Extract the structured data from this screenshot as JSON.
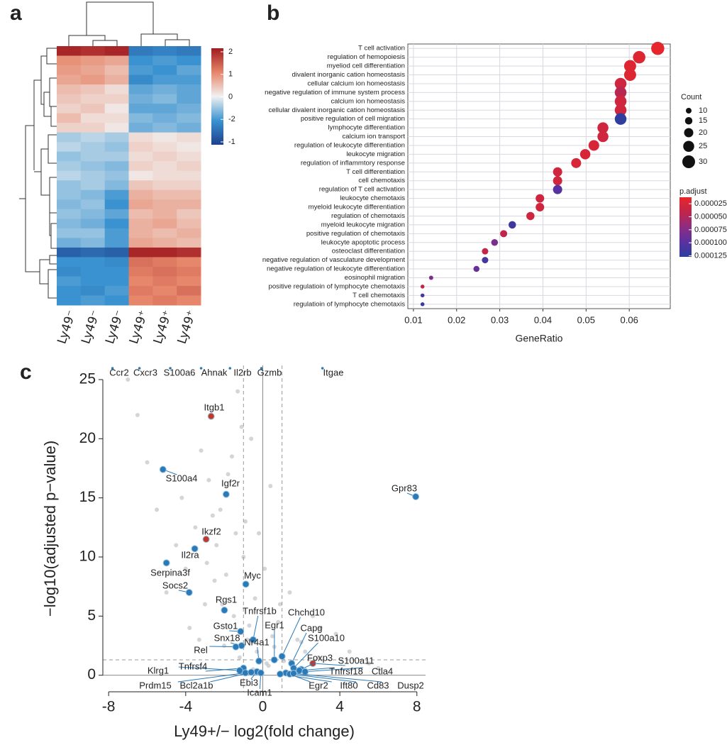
{
  "chart_data": [
    {
      "type": "heatmap",
      "panel": "a",
      "columns": [
        "Ly49⁻",
        "Ly49⁻",
        "Ly49⁻",
        "Ly49⁺",
        "Ly49⁺",
        "Ly49⁺"
      ],
      "rows": [
        [
          1.9,
          1.8,
          1.9,
          -1.3,
          -1.2,
          -1.3
        ],
        [
          0.9,
          0.8,
          0.7,
          -1.0,
          -0.9,
          -1.0
        ],
        [
          0.8,
          0.7,
          0.5,
          -0.9,
          -1.0,
          -0.8
        ],
        [
          0.7,
          0.8,
          0.6,
          -1.1,
          -0.9,
          -0.9
        ],
        [
          0.5,
          0.4,
          0.2,
          -0.8,
          -0.7,
          -0.8
        ],
        [
          0.4,
          0.3,
          0.3,
          -0.7,
          -0.6,
          -0.8
        ],
        [
          0.3,
          0.4,
          0.1,
          -0.8,
          -0.8,
          -0.7
        ],
        [
          0.5,
          0.2,
          0.2,
          -0.6,
          -0.7,
          -0.6
        ],
        [
          0.3,
          0.3,
          0.1,
          -0.7,
          -0.6,
          -0.7
        ],
        [
          -0.4,
          -0.3,
          -0.4,
          0.2,
          0.1,
          0.2
        ],
        [
          -0.3,
          -0.4,
          -0.5,
          0.3,
          0.2,
          0.1
        ],
        [
          -0.5,
          -0.4,
          -0.4,
          0.2,
          0.3,
          0.2
        ],
        [
          -0.4,
          -0.5,
          -0.6,
          0.3,
          0.2,
          0.3
        ],
        [
          -0.3,
          -0.4,
          -0.5,
          0.1,
          0.2,
          0.2
        ],
        [
          -0.5,
          -0.4,
          -0.6,
          0.4,
          0.3,
          0.3
        ],
        [
          -0.5,
          -0.6,
          -0.9,
          0.6,
          0.5,
          0.5
        ],
        [
          -0.6,
          -0.5,
          -1.0,
          0.7,
          0.6,
          0.6
        ],
        [
          -0.5,
          -0.6,
          -0.8,
          0.5,
          0.6,
          0.4
        ],
        [
          -0.6,
          -0.7,
          -1.0,
          0.6,
          0.7,
          0.5
        ],
        [
          -0.5,
          -0.5,
          -0.9,
          0.6,
          0.5,
          0.6
        ],
        [
          -0.7,
          -0.6,
          -0.9,
          0.7,
          0.6,
          0.5
        ],
        [
          -1.6,
          -1.5,
          -1.6,
          1.9,
          1.9,
          1.8
        ],
        [
          -1.0,
          -1.0,
          -1.1,
          1.2,
          1.1,
          1.0
        ],
        [
          -1.1,
          -1.0,
          -1.0,
          1.1,
          1.2,
          1.1
        ],
        [
          -0.9,
          -1.0,
          -1.0,
          1.0,
          1.1,
          1.0
        ],
        [
          -1.0,
          -1.1,
          -0.9,
          1.1,
          1.0,
          1.2
        ],
        [
          -1.0,
          -0.9,
          -1.0,
          1.0,
          1.1,
          1.0
        ]
      ],
      "zlim": [
        -2,
        2
      ],
      "colorscale": [
        "#1d3f8e",
        "#3a93d0",
        "#f1f1f1",
        "#e6866a",
        "#a11b1f"
      ],
      "colorbar_labels": [
        "2",
        "1",
        "0",
        "-2",
        "-1"
      ]
    },
    {
      "type": "dot",
      "panel": "b",
      "categories": [
        "T cell activation",
        "regulation of hemopoiesis",
        "myeliod cell differentiation",
        "divalent inorganic cation homeostasis",
        "cellular calcium ion homeostasis",
        "negative regulation of immune system process",
        "calcium ion homeostasis",
        "cellular divalent inorganic cation homeostasis",
        "positive regulation of cell migration",
        "lymphocyte differentiation",
        "calcium ion transport",
        "regulation of leukocyte differentiation",
        "leukocyte migration",
        "regulation of inflammtory response",
        "T cell differentiation",
        "cell chemotaxis",
        "regulation of T cell activation",
        "leukocyte chemotaxis",
        "myeloid leukocyte differentiation",
        "regulation of chemotaxis",
        "myeloid leukocyte migration",
        "positive regulation of chemotaxis",
        "leukocyte apoptotic process",
        "osteoclast differentiation",
        "negative regulation of vasculature development",
        "negative regulation of leukocyte differentiation",
        "eosinophil migration",
        "positive regulatioin of lymphocyte chemotaxis",
        "T cell chemotaxis",
        "regulatioin of lymphocyte chemotaxis"
      ],
      "category_colors": [
        "#2e9e3e",
        "#222",
        "#222",
        "#222",
        "#222",
        "#2e9e3e",
        "#222",
        "#222",
        "#222",
        "#2e9e3e",
        "#222",
        "#2e9e3e",
        "#2e9e3e",
        "#222",
        "#2e9e3e",
        "#222",
        "#2e9e3e",
        "#222",
        "#222",
        "#222",
        "#222",
        "#222",
        "#222",
        "#222",
        "#222",
        "#222",
        "#222",
        "#222",
        "#2e9e3e",
        "#222"
      ],
      "x": [
        0.0666,
        0.0623,
        0.0602,
        0.0602,
        0.058,
        0.058,
        0.058,
        0.058,
        0.058,
        0.0539,
        0.0539,
        0.0518,
        0.0498,
        0.0477,
        0.0434,
        0.0434,
        0.0434,
        0.0393,
        0.0393,
        0.0371,
        0.0329,
        0.0309,
        0.0288,
        0.0266,
        0.0266,
        0.0246,
        0.0141,
        0.0121,
        0.0121,
        0.0121
      ],
      "size": [
        31,
        29,
        28,
        28,
        27,
        27,
        27,
        27,
        27,
        25,
        25,
        24,
        23,
        22,
        20,
        20,
        20,
        18,
        18,
        17,
        15,
        14,
        13,
        12,
        12,
        11,
        6,
        5,
        5,
        5
      ],
      "color_values": [
        1.5e-05,
        2e-05,
        2e-05,
        2e-05,
        3e-05,
        4.5e-05,
        3e-05,
        3e-05,
        0.000125,
        3e-05,
        3e-05,
        2.5e-05,
        2.5e-05,
        2.5e-05,
        3e-05,
        3e-05,
        0.0001,
        3e-05,
        3e-05,
        3e-05,
        0.000115,
        4e-05,
        8e-05,
        4e-05,
        0.00011,
        9e-05,
        8e-05,
        4e-05,
        0.00011,
        0.00012
      ],
      "xlabel": "GeneRatio",
      "xlim": [
        0.0087,
        0.0695
      ],
      "xticks": [
        0.01,
        0.02,
        0.03,
        0.04,
        0.05,
        0.06
      ],
      "grid": true,
      "size_legend": {
        "title": "Count",
        "values": [
          10,
          15,
          20,
          25,
          30
        ]
      },
      "color_legend": {
        "title": "p.adjust",
        "lim": [
          1.25e-05,
          0.000127
        ],
        "colorscale": [
          "#e8262a",
          "#c0254b",
          "#8e2c82",
          "#5a31a0",
          "#2c3e9e"
        ],
        "ticks": [
          2.5e-05,
          {
            "value": 5e-05,
            "label": "0.000050"
          },
          7.5e-05,
          {
            "value": 0.0001,
            "label": "0.000100"
          },
          0.000125
        ]
      }
    },
    {
      "type": "volcano",
      "panel": "c",
      "xlabel": "Ly49+/− log2(fold change)",
      "ylabel": "−log10(adjusted p−value)",
      "xlim": [
        -8.3,
        8.45
      ],
      "ylim": [
        -1.4,
        26.2
      ],
      "xticks": [
        -8,
        -4,
        0,
        4,
        8
      ],
      "yticks": [
        0,
        5,
        10,
        15,
        20,
        25
      ],
      "thresholds": {
        "x": [
          -1,
          1
        ],
        "y": 1.3
      },
      "background": {
        "color": "#c6c7cc",
        "x": [
          -0.5,
          0.3,
          -1.2,
          1.1,
          -2,
          2.2,
          -0.8,
          0.6,
          -1.5,
          1.8,
          -3,
          3,
          -2.5,
          2.6,
          -0.2,
          0.1,
          -1,
          0.9,
          -4,
          3.8,
          -3.5,
          -2.2,
          1.4,
          -1.8,
          -0.6,
          0.4,
          -5.5,
          -4.5,
          -6,
          4.5,
          -2.8,
          -1.3,
          0.8,
          -0.9,
          2.9,
          -3.2,
          -6.5,
          -7,
          -1.6,
          -2.4,
          -3.8,
          0.2,
          -0.4,
          1.6,
          -5,
          2,
          -1.1,
          -2.9,
          -0.7,
          0.5,
          -4.2,
          -3.3,
          5.5,
          6,
          -2.1,
          1.2,
          -0.3,
          -1.9,
          -2.6,
          -1.4
        ],
        "y": [
          0.5,
          0.8,
          1.5,
          1.2,
          2.5,
          2,
          3,
          2.4,
          5,
          3,
          6,
          4,
          8,
          5,
          12,
          9,
          10,
          6,
          9,
          3.5,
          12.5,
          14,
          7,
          17,
          20,
          16,
          14,
          11,
          18,
          2,
          16.5,
          24,
          4.5,
          13,
          1.5,
          19,
          22,
          25,
          18.5,
          11,
          4,
          1,
          6.5,
          0.7,
          7,
          2.8,
          21,
          9.5,
          4.2,
          3.3,
          15,
          3,
          1,
          0.6,
          6,
          0.3,
          2,
          8.5,
          13.5,
          12
        ]
      },
      "genes": {
        "names": [
          "Ccr2",
          "Cxcr3",
          "S100a6",
          "Ahnak",
          "Il2rb",
          "Gzmb",
          "Itgae",
          "Itgb1",
          "S100a4",
          "Igf2r",
          "Gpr83",
          "Ikzf2",
          "Il2ra",
          "Serpina3f",
          "Myc",
          "Socs2",
          "Rgs1",
          "Tnfrsf1b",
          "Chchd10",
          "Egr1",
          "Capg",
          "S100a10",
          "Gsto1",
          "Snx18",
          "Nr4a1",
          "Rel",
          "S100a11",
          "Foxp3",
          "Tnfrsf18",
          "Ctla4",
          "Tnfrsf4",
          "Klrg1",
          "Egr2",
          "Ift80",
          "Cd83",
          "Dusp2",
          "Ebi3",
          "Icam1",
          "Prdm15",
          "Bcl2a1b"
        ],
        "x": [
          -7.8,
          -6.4,
          -4.8,
          -3.2,
          -1.7,
          -0.07,
          3.1,
          -2.68,
          -5.18,
          -1.9,
          7.94,
          -2.94,
          -3.53,
          -5.0,
          -0.88,
          -3.82,
          -1.99,
          -0.5,
          1.0,
          0.6,
          1.5,
          1.6,
          -1.15,
          -1.1,
          -0.2,
          -1.4,
          2.6,
          2.0,
          1.9,
          2.2,
          -1.0,
          -1.2,
          1.2,
          0.9,
          1.4,
          1.6,
          -0.3,
          -0.1,
          -0.9,
          -0.6
        ],
        "y": [
          25.9,
          25.9,
          25.9,
          25.9,
          25.9,
          25.9,
          25.9,
          21.9,
          17.4,
          15.3,
          15.1,
          11.5,
          10.7,
          9.5,
          7.7,
          7.0,
          5.5,
          3.0,
          1.6,
          1.3,
          1.0,
          0.6,
          3.7,
          2.5,
          1.2,
          2.4,
          1.0,
          0.5,
          0.4,
          0.3,
          0.6,
          0.4,
          0.2,
          0.1,
          0.1,
          0.15,
          0.3,
          0.2,
          0.2,
          0.25
        ],
        "colors": [
          "#2a7ab8",
          "#2a7ab8",
          "#2a7ab8",
          "#2a7ab8",
          "#2a7ab8",
          "#2a7ab8",
          "#2a7ab8",
          "#c0392b",
          "#2a7ab8",
          "#2a7ab8",
          "#2a7ab8",
          "#c0392b",
          "#2a7ab8",
          "#2a7ab8",
          "#2a7ab8",
          "#2a7ab8",
          "#2a7ab8",
          "#2a7ab8",
          "#2a7ab8",
          "#2a7ab8",
          "#2a7ab8",
          "#2a7ab8",
          "#2a7ab8",
          "#2a7ab8",
          "#2a7ab8",
          "#2a7ab8",
          "#c0392b",
          "#2a7ab8",
          "#2a7ab8",
          "#2a7ab8",
          "#2a7ab8",
          "#2a7ab8",
          "#2a7ab8",
          "#2a7ab8",
          "#2a7ab8",
          "#2a7ab8",
          "#2a7ab8",
          "#2a7ab8",
          "#2a7ab8",
          "#2a7ab8"
        ],
        "label_colors": [
          "#d7301f",
          "#d7301f",
          "#d7301f",
          "#d7301f",
          "#d7301f",
          "#d7301f",
          "#d7301f",
          "#d7301f",
          "#d7301f",
          "#d7301f",
          "#d7301f",
          "#1f9e3a",
          "#d7301f",
          "#d7301f",
          "#d7301f",
          "#d7301f",
          "#d7301f",
          "#d7301f",
          "#d7301f",
          "#d7301f",
          "#d7301f",
          "#d7301f",
          "#d7301f",
          "#d7301f",
          "#d7301f",
          "#d7301f",
          "#d7301f",
          "#1f9e3a",
          "#d7301f",
          "#d7301f",
          "#d7301f",
          "#d7301f",
          "#d7301f",
          "#d7301f",
          "#d7301f",
          "#d7301f",
          "#1f9e3a",
          "#1f9e3a",
          "#d7301f",
          "#d7301f"
        ]
      }
    }
  ]
}
